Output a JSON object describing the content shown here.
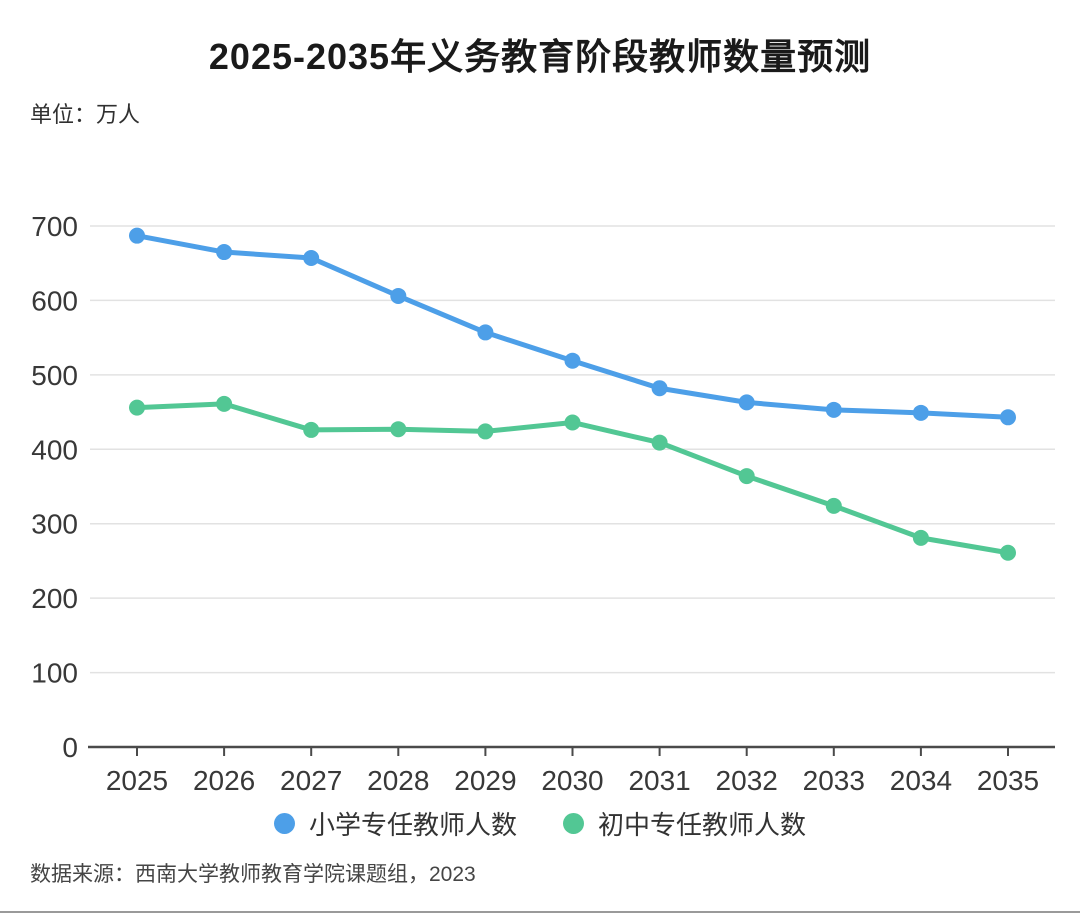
{
  "page": {
    "title": "2025-2035年义务教育阶段教师数量预测",
    "unit_label": "单位：万人",
    "source_note": "数据来源：西南大学教师教育学院课题组，2023"
  },
  "colors": {
    "primary_series": "#4D9FE8",
    "middle_series": "#52C794",
    "gridline": "#e2e2e2",
    "axis_line": "#4a4a4a",
    "axis_text": "#383838",
    "title_text": "#1a1a1a",
    "legend_text": "#333333",
    "source_text": "#454545",
    "divider": "#9a9a9a"
  },
  "chart_data": {
    "type": "line",
    "title": "2025-2035年义务教育阶段教师数量预测",
    "unit": "万人",
    "xlabel": "",
    "ylabel": "万人",
    "categories": [
      "2025",
      "2026",
      "2027",
      "2028",
      "2029",
      "2030",
      "2031",
      "2032",
      "2033",
      "2034",
      "2035"
    ],
    "series": [
      {
        "name": "小学专任教师人数",
        "color": "#4D9FE8",
        "values": [
          687,
          665,
          657,
          606,
          557,
          519,
          482,
          463,
          453,
          449,
          443
        ]
      },
      {
        "name": "初中专任教师人数",
        "color": "#52C794",
        "values": [
          456,
          461,
          426,
          427,
          424,
          436,
          409,
          364,
          324,
          281,
          261
        ]
      }
    ],
    "ylim": [
      0,
      700
    ],
    "ytick_step": 100,
    "grid": true,
    "legend_position": "bottom",
    "markers": "circle"
  }
}
